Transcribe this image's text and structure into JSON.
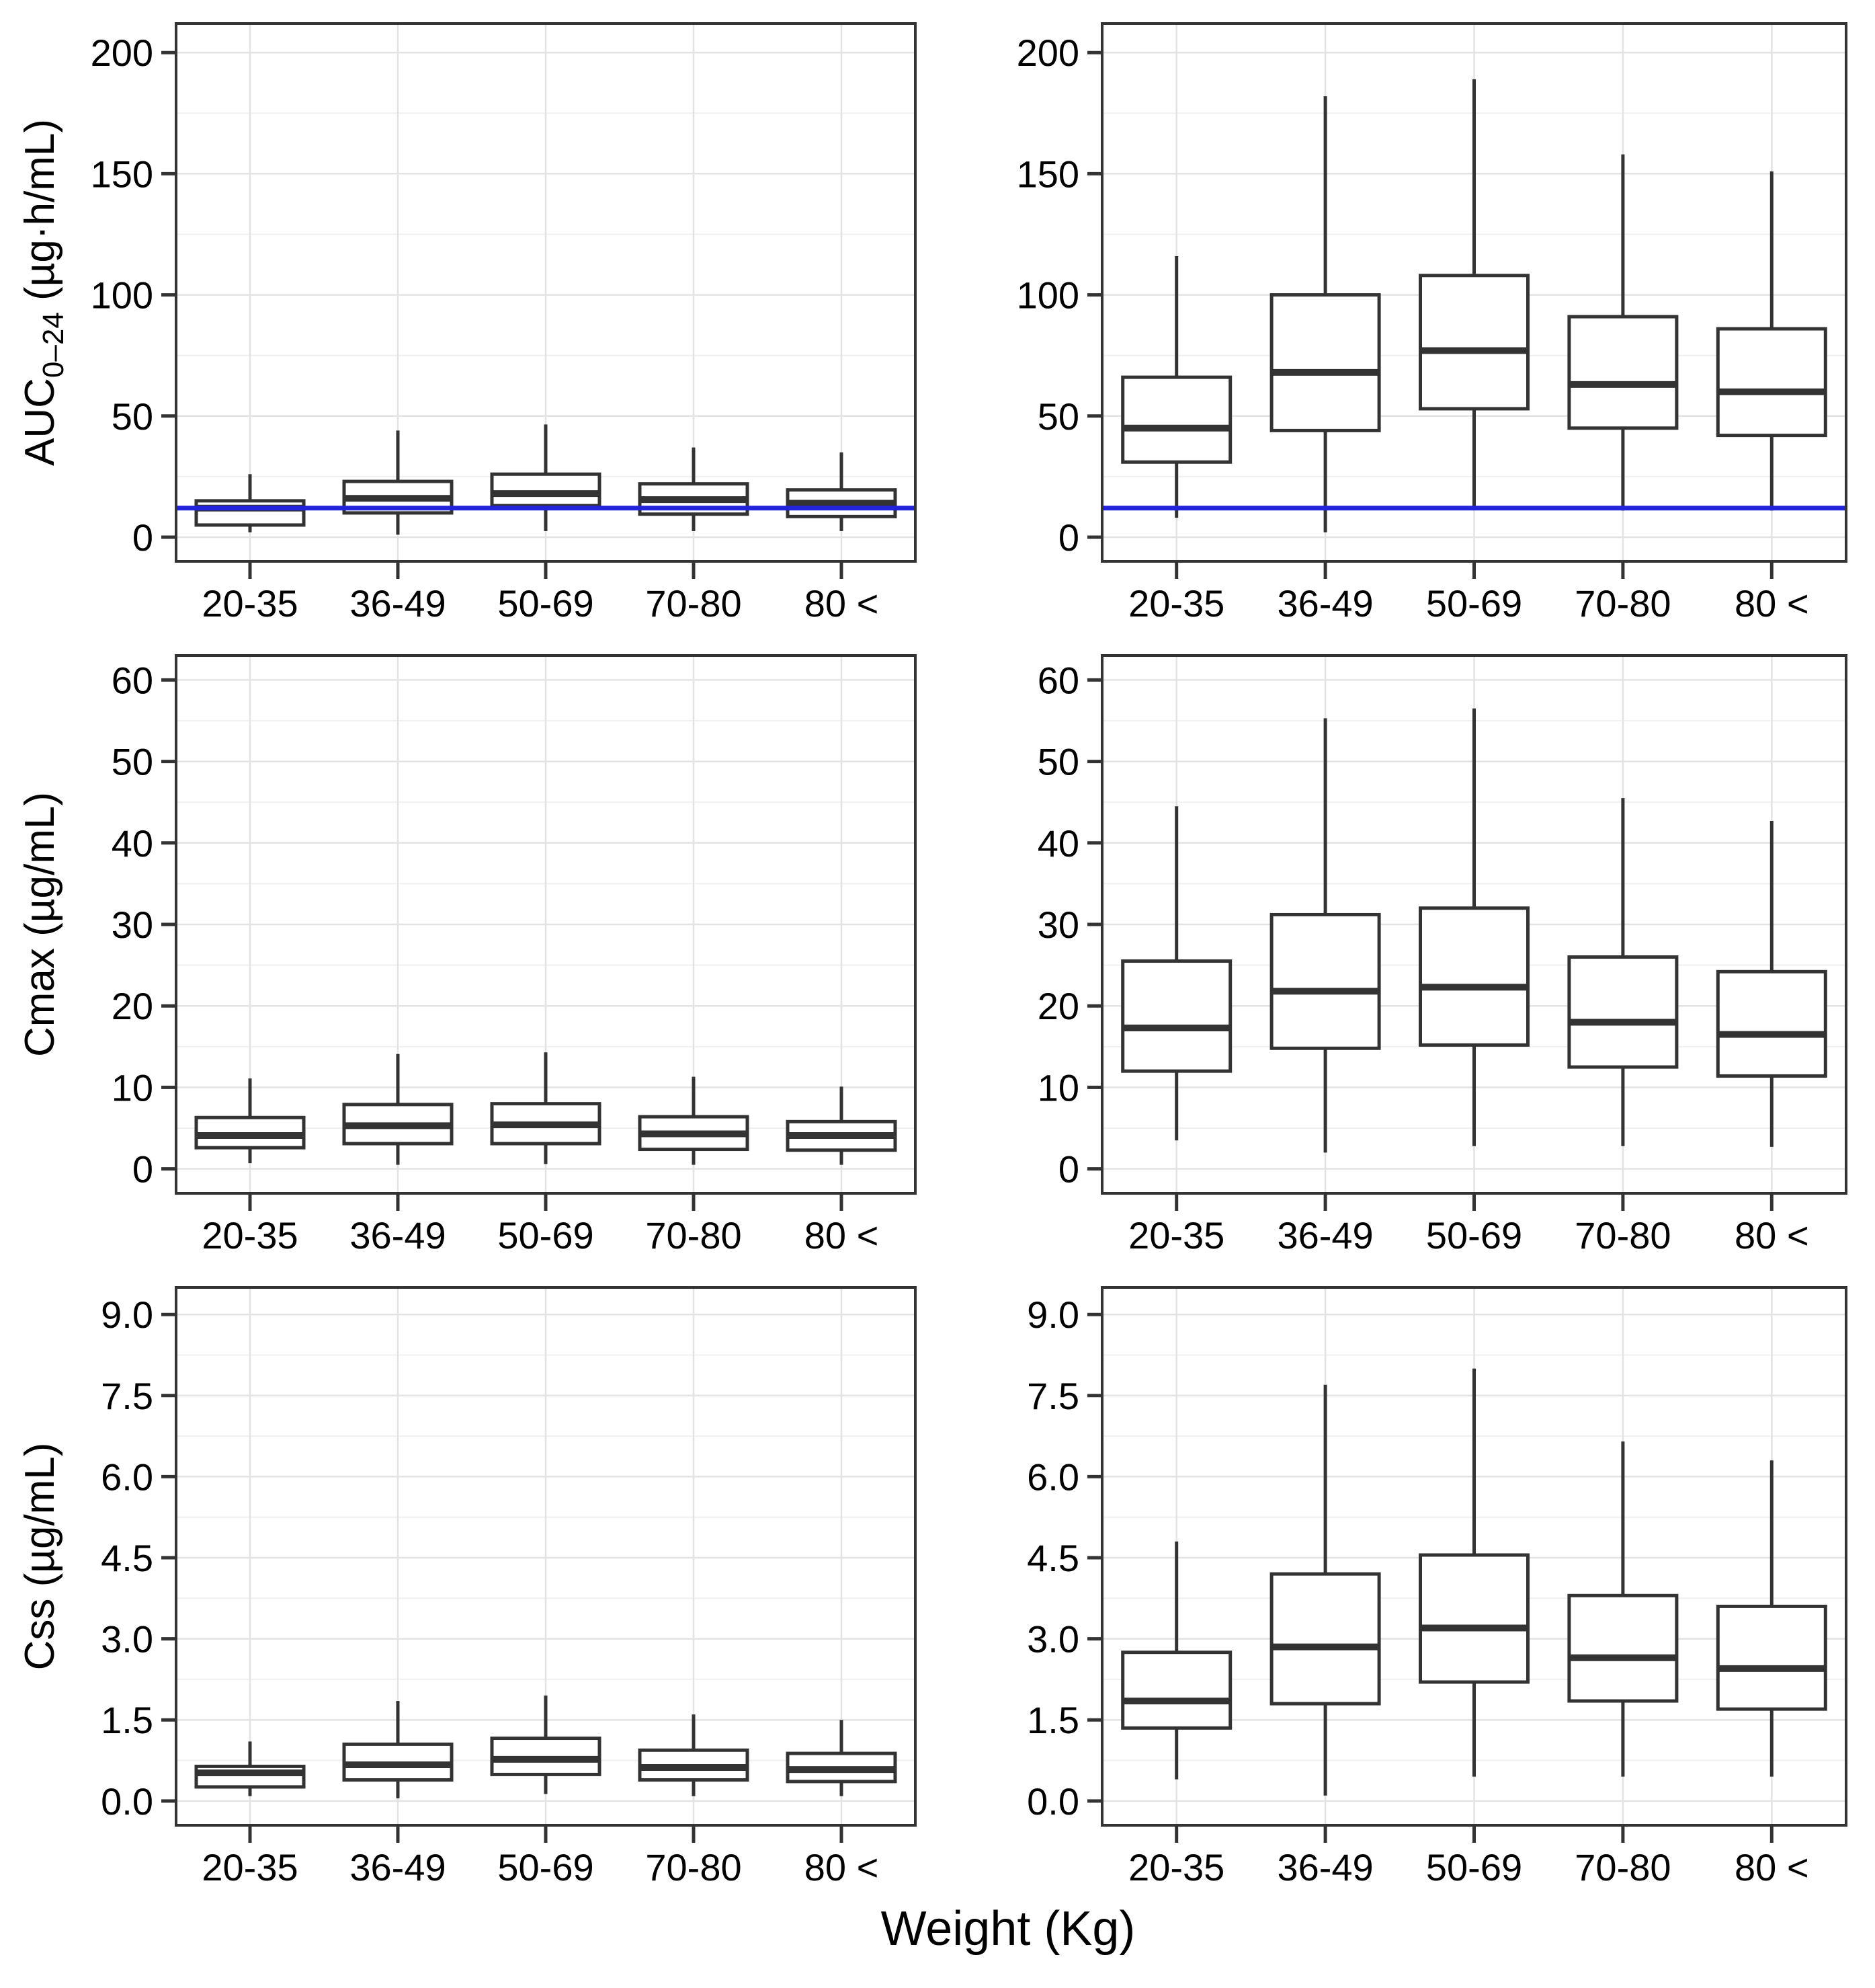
{
  "figure": {
    "xlabel": "Weight (Kg)",
    "categories": [
      "20-35",
      "36-49",
      "50-69",
      "70-80",
      "80 <"
    ],
    "colors": {
      "box_stroke": "#333333",
      "box_fill": "#ffffff",
      "grid_major": "#e3e3e3",
      "grid_minor": "#f0f0f0",
      "panel_border": "#333333",
      "refline": "#2323dd",
      "text": "#000000",
      "background": "#ffffff"
    }
  },
  "chart_data": [
    {
      "id": "auc-left",
      "type": "box",
      "row": 1,
      "col": "left",
      "ylabel_parts": [
        {
          "text": "AUC"
        },
        {
          "text": "0–24",
          "sub": true
        },
        {
          "text": " (µg·h/mL)"
        }
      ],
      "ylim": [
        -10,
        212
      ],
      "yticks": [
        {
          "v": 0,
          "label": "0"
        },
        {
          "v": 50,
          "label": "50"
        },
        {
          "v": 100,
          "label": "100"
        },
        {
          "v": 150,
          "label": "150"
        },
        {
          "v": 200,
          "label": "200"
        }
      ],
      "refline": 12,
      "categories": [
        "20-35",
        "36-49",
        "50-69",
        "70-80",
        "80 <"
      ],
      "boxes": [
        {
          "category": "20-35",
          "low": 2,
          "q1": 5,
          "median": 12,
          "q3": 15,
          "high": 26
        },
        {
          "category": "36-49",
          "low": 1,
          "q1": 10,
          "median": 16,
          "q3": 23,
          "high": 44
        },
        {
          "category": "50-69",
          "low": 2.5,
          "q1": 13,
          "median": 18,
          "q3": 26,
          "high": 46.5
        },
        {
          "category": "70-80",
          "low": 2.5,
          "q1": 9.5,
          "median": 15.5,
          "q3": 22,
          "high": 37
        },
        {
          "category": "80 <",
          "low": 2.5,
          "q1": 8.5,
          "median": 14,
          "q3": 19.5,
          "high": 35
        }
      ]
    },
    {
      "id": "auc-right",
      "type": "box",
      "row": 1,
      "col": "right",
      "ylabel_parts": [],
      "ylim": [
        -10,
        212
      ],
      "yticks": [
        {
          "v": 0,
          "label": "0"
        },
        {
          "v": 50,
          "label": "50"
        },
        {
          "v": 100,
          "label": "100"
        },
        {
          "v": 150,
          "label": "150"
        },
        {
          "v": 200,
          "label": "200"
        }
      ],
      "refline": 12,
      "categories": [
        "20-35",
        "36-49",
        "50-69",
        "70-80",
        "80 <"
      ],
      "boxes": [
        {
          "category": "20-35",
          "low": 8,
          "q1": 31,
          "median": 45,
          "q3": 66,
          "high": 116
        },
        {
          "category": "36-49",
          "low": 2,
          "q1": 44,
          "median": 68,
          "q3": 100,
          "high": 182
        },
        {
          "category": "50-69",
          "low": 12,
          "q1": 53,
          "median": 77,
          "q3": 108,
          "high": 189
        },
        {
          "category": "70-80",
          "low": 11,
          "q1": 45,
          "median": 63,
          "q3": 91,
          "high": 158
        },
        {
          "category": "80 <",
          "low": 11,
          "q1": 42,
          "median": 60,
          "q3": 86,
          "high": 151
        }
      ]
    },
    {
      "id": "cmax-left",
      "type": "box",
      "row": 2,
      "col": "left",
      "ylabel_parts": [
        {
          "text": "Cmax (µg/mL)"
        }
      ],
      "ylim": [
        -3,
        63
      ],
      "yticks": [
        {
          "v": 0,
          "label": "0"
        },
        {
          "v": 10,
          "label": "10"
        },
        {
          "v": 20,
          "label": "20"
        },
        {
          "v": 30,
          "label": "30"
        },
        {
          "v": 40,
          "label": "40"
        },
        {
          "v": 50,
          "label": "50"
        },
        {
          "v": 60,
          "label": "60"
        }
      ],
      "refline": null,
      "categories": [
        "20-35",
        "36-49",
        "50-69",
        "70-80",
        "80 <"
      ],
      "boxes": [
        {
          "category": "20-35",
          "low": 0.7,
          "q1": 2.6,
          "median": 4.1,
          "q3": 6.3,
          "high": 11.1
        },
        {
          "category": "36-49",
          "low": 0.5,
          "q1": 3.1,
          "median": 5.3,
          "q3": 7.9,
          "high": 14.1
        },
        {
          "category": "50-69",
          "low": 0.6,
          "q1": 3.1,
          "median": 5.4,
          "q3": 8.0,
          "high": 14.3
        },
        {
          "category": "70-80",
          "low": 0.5,
          "q1": 2.4,
          "median": 4.3,
          "q3": 6.4,
          "high": 11.3
        },
        {
          "category": "80 <",
          "low": 0.5,
          "q1": 2.3,
          "median": 4.1,
          "q3": 5.8,
          "high": 10.1
        }
      ]
    },
    {
      "id": "cmax-right",
      "type": "box",
      "row": 2,
      "col": "right",
      "ylabel_parts": [],
      "ylim": [
        -3,
        63
      ],
      "yticks": [
        {
          "v": 0,
          "label": "0"
        },
        {
          "v": 10,
          "label": "10"
        },
        {
          "v": 20,
          "label": "20"
        },
        {
          "v": 30,
          "label": "30"
        },
        {
          "v": 40,
          "label": "40"
        },
        {
          "v": 50,
          "label": "50"
        },
        {
          "v": 60,
          "label": "60"
        }
      ],
      "refline": null,
      "categories": [
        "20-35",
        "36-49",
        "50-69",
        "70-80",
        "80 <"
      ],
      "boxes": [
        {
          "category": "20-35",
          "low": 3.5,
          "q1": 12,
          "median": 17.3,
          "q3": 25.5,
          "high": 44.5
        },
        {
          "category": "36-49",
          "low": 2,
          "q1": 14.8,
          "median": 21.8,
          "q3": 31.2,
          "high": 55.3
        },
        {
          "category": "50-69",
          "low": 2.8,
          "q1": 15.2,
          "median": 22.3,
          "q3": 32,
          "high": 56.5
        },
        {
          "category": "70-80",
          "low": 2.8,
          "q1": 12.5,
          "median": 18,
          "q3": 26,
          "high": 45.5
        },
        {
          "category": "80 <",
          "low": 2.7,
          "q1": 11.4,
          "median": 16.5,
          "q3": 24.2,
          "high": 42.7
        }
      ]
    },
    {
      "id": "css-left",
      "type": "box",
      "row": 3,
      "col": "left",
      "ylabel_parts": [
        {
          "text": "Css (µg/mL)"
        }
      ],
      "ylim": [
        -0.45,
        9.5
      ],
      "yticks": [
        {
          "v": 0,
          "label": "0.0"
        },
        {
          "v": 1.5,
          "label": "1.5"
        },
        {
          "v": 3,
          "label": "3.0"
        },
        {
          "v": 4.5,
          "label": "4.5"
        },
        {
          "v": 6,
          "label": "6.0"
        },
        {
          "v": 7.5,
          "label": "7.5"
        },
        {
          "v": 9,
          "label": "9.0"
        }
      ],
      "refline": null,
      "categories": [
        "20-35",
        "36-49",
        "50-69",
        "70-80",
        "80 <"
      ],
      "boxes": [
        {
          "category": "20-35",
          "low": 0.09,
          "q1": 0.26,
          "median": 0.52,
          "q3": 0.64,
          "high": 1.1
        },
        {
          "category": "36-49",
          "low": 0.05,
          "q1": 0.39,
          "median": 0.67,
          "q3": 1.05,
          "high": 1.85
        },
        {
          "category": "50-69",
          "low": 0.13,
          "q1": 0.49,
          "median": 0.77,
          "q3": 1.16,
          "high": 1.95
        },
        {
          "category": "70-80",
          "low": 0.09,
          "q1": 0.39,
          "median": 0.62,
          "q3": 0.94,
          "high": 1.6
        },
        {
          "category": "80 <",
          "low": 0.09,
          "q1": 0.36,
          "median": 0.58,
          "q3": 0.88,
          "high": 1.5
        }
      ]
    },
    {
      "id": "css-right",
      "type": "box",
      "row": 3,
      "col": "right",
      "ylabel_parts": [],
      "ylim": [
        -0.45,
        9.5
      ],
      "yticks": [
        {
          "v": 0,
          "label": "0.0"
        },
        {
          "v": 1.5,
          "label": "1.5"
        },
        {
          "v": 3,
          "label": "3.0"
        },
        {
          "v": 4.5,
          "label": "4.5"
        },
        {
          "v": 6,
          "label": "6.0"
        },
        {
          "v": 7.5,
          "label": "7.5"
        },
        {
          "v": 9,
          "label": "9.0"
        }
      ],
      "refline": null,
      "categories": [
        "20-35",
        "36-49",
        "50-69",
        "70-80",
        "80 <"
      ],
      "boxes": [
        {
          "category": "20-35",
          "low": 0.4,
          "q1": 1.35,
          "median": 1.85,
          "q3": 2.75,
          "high": 4.8
        },
        {
          "category": "36-49",
          "low": 0.1,
          "q1": 1.8,
          "median": 2.85,
          "q3": 4.2,
          "high": 7.7
        },
        {
          "category": "50-69",
          "low": 0.45,
          "q1": 2.2,
          "median": 3.2,
          "q3": 4.55,
          "high": 8.0
        },
        {
          "category": "70-80",
          "low": 0.45,
          "q1": 1.85,
          "median": 2.65,
          "q3": 3.8,
          "high": 6.65
        },
        {
          "category": "80 <",
          "low": 0.45,
          "q1": 1.7,
          "median": 2.45,
          "q3": 3.6,
          "high": 6.3
        }
      ]
    }
  ]
}
